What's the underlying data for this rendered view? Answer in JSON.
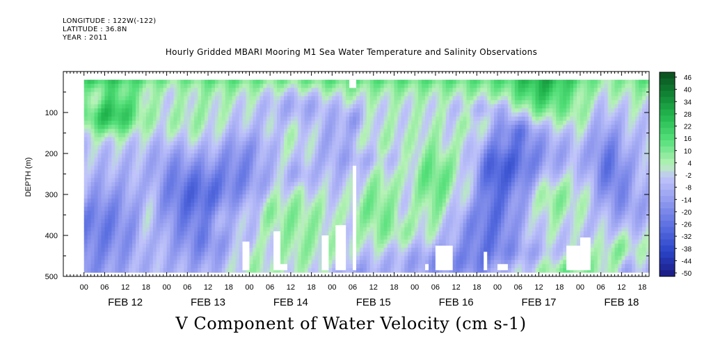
{
  "header": {
    "longitude": "LONGITUDE : 122W(-122)",
    "latitude": "LATITUDE : 36.8N",
    "year": "YEAR : 2011"
  },
  "chart_data": {
    "type": "heatmap",
    "title": "Hourly Gridded MBARI Mooring M1 Sea Water Temperature and Salinity Observations",
    "variable_label": "V Component of Water Velocity (cm s-1)",
    "ylabel": "DEPTH (m)",
    "y_axis": {
      "range": [
        0,
        500
      ],
      "inverted": true,
      "ticks": [
        100,
        200,
        300,
        400,
        500
      ]
    },
    "x_axis": {
      "hour_ticks": [
        "00",
        "06",
        "12",
        "18",
        "00",
        "06",
        "12",
        "18",
        "00",
        "06",
        "12",
        "18",
        "00",
        "06",
        "12",
        "18",
        "00",
        "06",
        "12",
        "18",
        "00",
        "06",
        "12",
        "18",
        "00",
        "06",
        "12",
        "18"
      ],
      "days": [
        {
          "label": "FEB 12",
          "center_hour": 12
        },
        {
          "label": "FEB 13",
          "center_hour": 36
        },
        {
          "label": "FEB 14",
          "center_hour": 60
        },
        {
          "label": "FEB 15",
          "center_hour": 84
        },
        {
          "label": "FEB 16",
          "center_hour": 108
        },
        {
          "label": "FEB 17",
          "center_hour": 132
        },
        {
          "label": "FEB 18",
          "center_hour": 156
        }
      ],
      "hours_span": [
        -6,
        164
      ],
      "data_hours": [
        0,
        163
      ]
    },
    "colorbar": {
      "labels": [
        "46",
        "40",
        "34",
        "28",
        "22",
        "16",
        "10",
        "4",
        "-2",
        "-8",
        "-14",
        "-20",
        "-26",
        "-32",
        "-38",
        "-44",
        "-50"
      ],
      "range": [
        -50,
        49
      ],
      "stops": [
        {
          "v": -50,
          "c": "#1a1a80"
        },
        {
          "v": -38,
          "c": "#2a44c8"
        },
        {
          "v": -26,
          "c": "#5a6ee0"
        },
        {
          "v": -14,
          "c": "#8f98ee"
        },
        {
          "v": -2,
          "c": "#c0c4fa"
        },
        {
          "v": 4,
          "c": "#b6f2b6"
        },
        {
          "v": 16,
          "c": "#55e07a"
        },
        {
          "v": 28,
          "c": "#22b64e"
        },
        {
          "v": 40,
          "c": "#0f7a30"
        },
        {
          "v": 49,
          "c": "#0a4d1e"
        }
      ]
    },
    "gaps": [
      {
        "x0": 77,
        "x1": 79,
        "d0": 0,
        "d1": 40
      },
      {
        "x0": 78,
        "x1": 79,
        "d0": 230,
        "d1": 500
      },
      {
        "x0": 69,
        "x1": 71,
        "d0": 400,
        "d1": 500
      },
      {
        "x0": 46,
        "x1": 48,
        "d0": 415,
        "d1": 500
      },
      {
        "x0": 55,
        "x1": 57,
        "d0": 390,
        "d1": 500
      },
      {
        "x0": 57,
        "x1": 59,
        "d0": 470,
        "d1": 500
      },
      {
        "x0": 73,
        "x1": 76,
        "d0": 375,
        "d1": 500
      },
      {
        "x0": 99,
        "x1": 100,
        "d0": 470,
        "d1": 500
      },
      {
        "x0": 102,
        "x1": 107,
        "d0": 425,
        "d1": 500
      },
      {
        "x0": 116,
        "x1": 117,
        "d0": 440,
        "d1": 500
      },
      {
        "x0": 120,
        "x1": 123,
        "d0": 470,
        "d1": 500
      },
      {
        "x0": 140,
        "x1": 144,
        "d0": 425,
        "d1": 500
      },
      {
        "x0": 144,
        "x1": 147,
        "d0": 405,
        "d1": 500
      }
    ]
  }
}
